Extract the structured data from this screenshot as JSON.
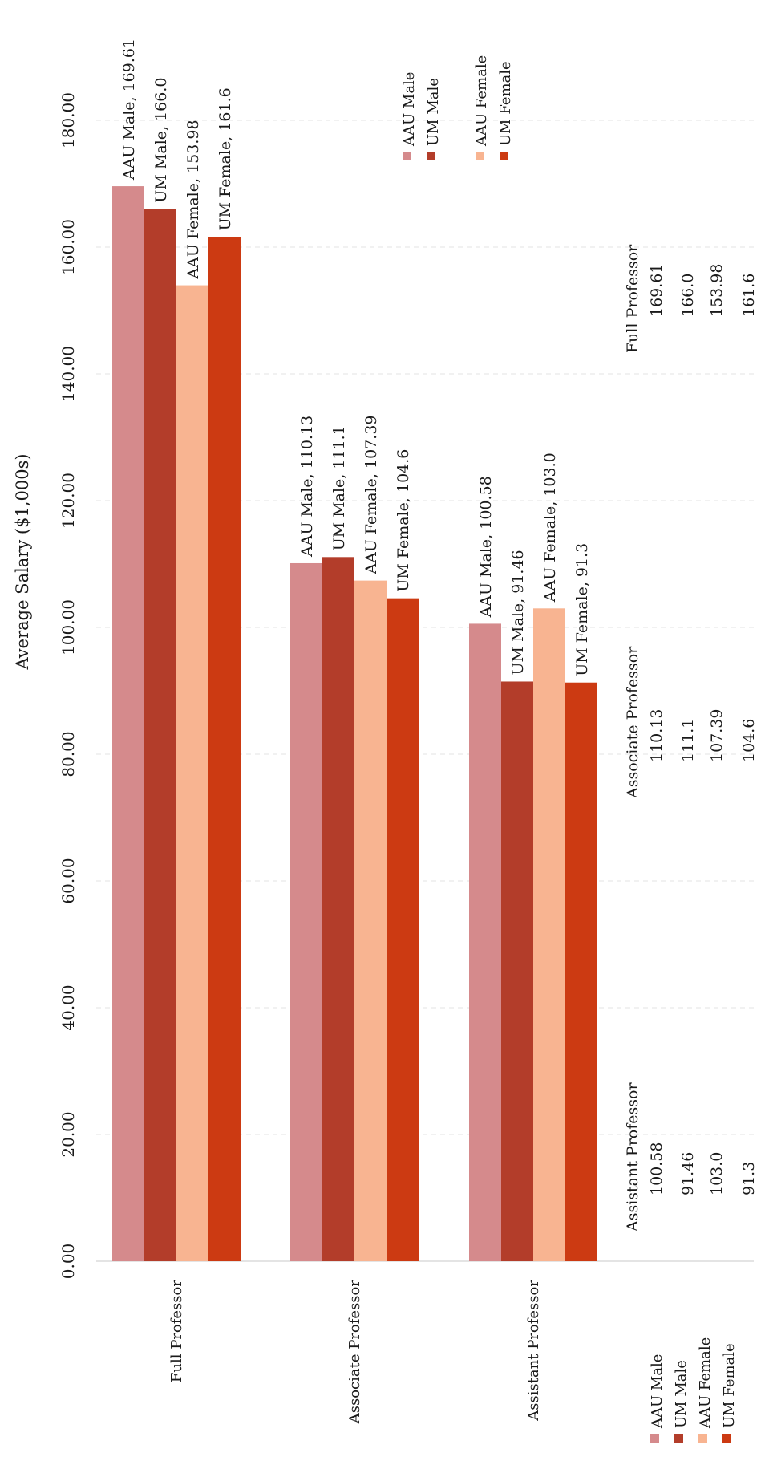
{
  "chart_data": {
    "type": "bar",
    "orientation": "rotated (page printed sideways; bars grow upward, value axis at left)",
    "ylabel": "Average Salary ($1,000s)",
    "yticks": [
      "0.00",
      "20.00",
      "40.00",
      "60.00",
      "80.00",
      "100.00",
      "120.00",
      "140.00",
      "160.00",
      "180.00"
    ],
    "ylim": [
      0,
      180
    ],
    "grid": true,
    "categories": [
      "Full Professor",
      "Associate Professor",
      "Assistant Professor"
    ],
    "series": [
      {
        "name": "AAU Male",
        "color": "#d58a8c",
        "values": [
          169.61,
          110.13,
          100.58
        ],
        "labels": [
          "AAU Male, 169.61",
          "AAU Male, 110.13",
          "AAU Male, 100.58"
        ]
      },
      {
        "name": "UM Male",
        "color": "#b33d2a",
        "values": [
          166.0,
          111.1,
          91.46
        ],
        "labels": [
          "UM Male, 166.0",
          "UM Male, 111.1",
          "UM Male, 91.46"
        ]
      },
      {
        "name": "AAU Female",
        "color": "#f8b491",
        "values": [
          153.98,
          107.39,
          103.0
        ],
        "labels": [
          "AAU Female, 153.98",
          "AAU Female, 107.39",
          "AAU Female, 103.0"
        ]
      },
      {
        "name": "UM Female",
        "color": "#cc3a12",
        "values": [
          161.6,
          104.6,
          91.3
        ],
        "labels": [
          "UM Female, 161.6",
          "UM Female, 104.6",
          "UM Female, 91.3"
        ]
      }
    ],
    "data_table": {
      "columns": [
        "Assistant Professor",
        "Associate Professor",
        "Full Professor"
      ],
      "rows": [
        [
          "100.58",
          "110.13",
          "169.61"
        ],
        [
          "91.46",
          "111.1",
          "166.0"
        ],
        [
          "103.0",
          "107.39",
          "153.98"
        ],
        [
          "91.3",
          "104.6",
          "161.6"
        ]
      ]
    },
    "legend_entries": [
      "AAU Male",
      "UM Male",
      "AAU Female",
      "UM Female"
    ],
    "legend_placement": "bottom-left and top-right"
  }
}
